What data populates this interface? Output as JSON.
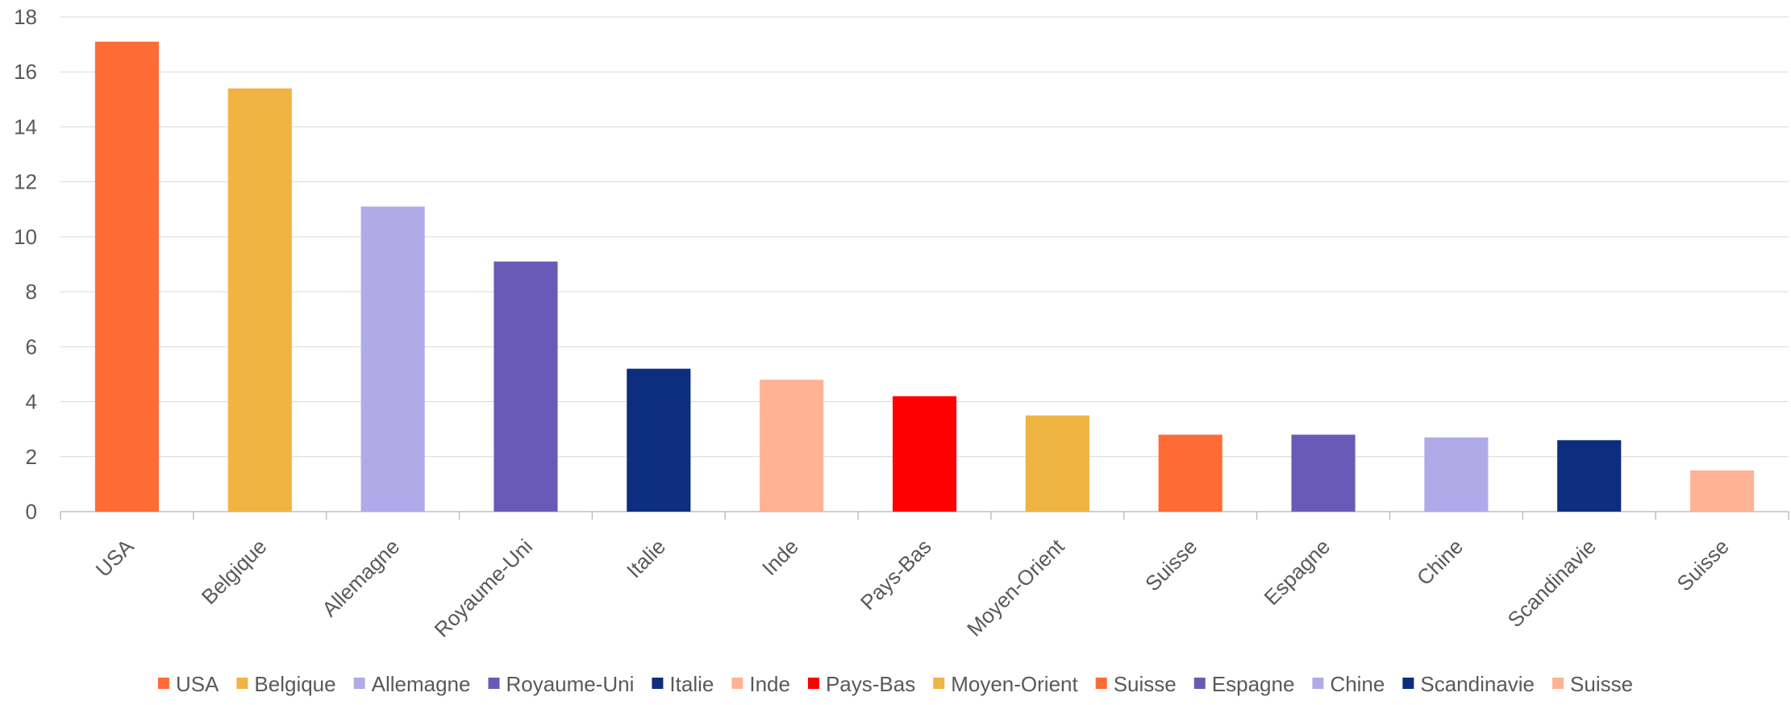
{
  "chart_data": {
    "type": "bar",
    "title": "",
    "xlabel": "",
    "ylabel": "",
    "ylim": [
      0,
      18
    ],
    "yticks": [
      0,
      2,
      4,
      6,
      8,
      10,
      12,
      14,
      16,
      18
    ],
    "grid": true,
    "legend_position": "bottom",
    "categories": [
      "USA",
      "Belgique",
      "Allemagne",
      "Royaume-Uni",
      "Italie",
      "Inde",
      "Pays-Bas",
      "Moyen-Orient",
      "Suisse",
      "Espagne",
      "Chine",
      "Scandinavie",
      "Suisse"
    ],
    "values": [
      17.1,
      15.4,
      11.1,
      9.1,
      5.2,
      4.8,
      4.2,
      3.5,
      2.8,
      2.8,
      2.7,
      2.6,
      1.5
    ],
    "colors": [
      "#FF6B35",
      "#F0B443",
      "#B0ABE8",
      "#6A5AB8",
      "#0D2D7E",
      "#FFB394",
      "#FF0000",
      "#F0B443",
      "#FF6B35",
      "#6A5AB8",
      "#B0ABE8",
      "#0D2D7E",
      "#FFB394"
    ]
  }
}
